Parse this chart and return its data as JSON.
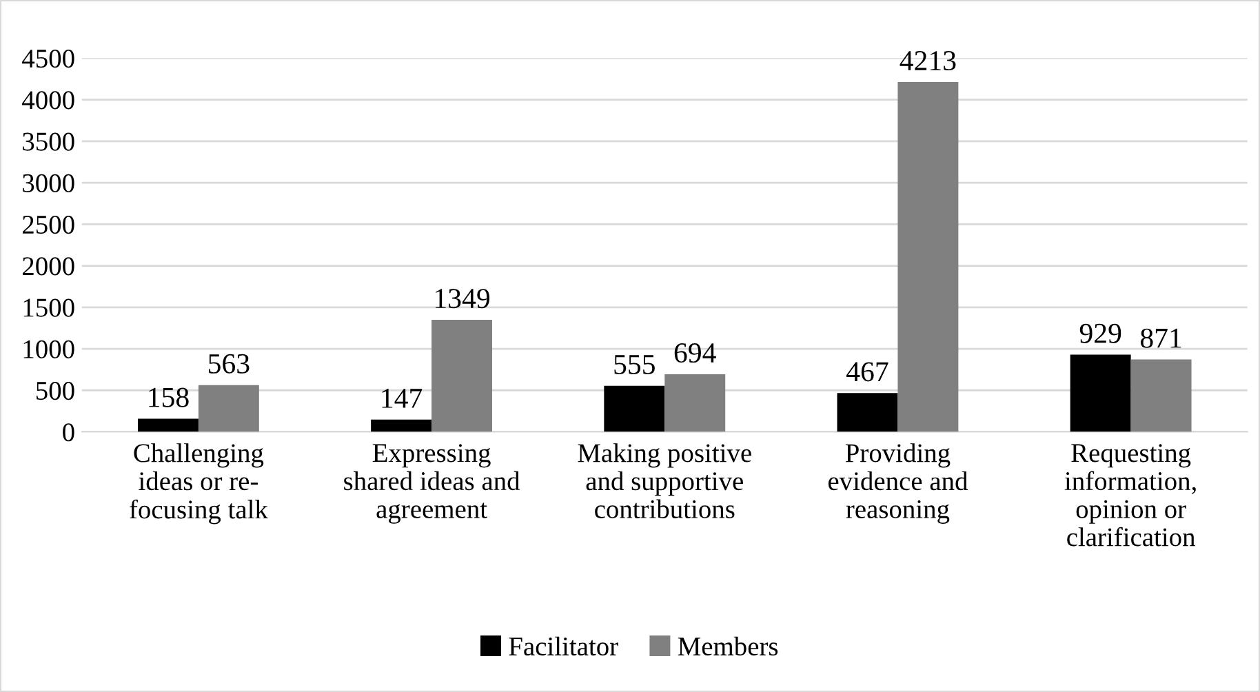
{
  "chart_data": {
    "type": "bar",
    "categories": [
      "Challenging\nideas or re-\nfocusing talk",
      "Expressing\nshared ideas and\nagreement",
      "Making positive\nand supportive\ncontributions",
      "Providing\nevidence and\nreasoning",
      "Requesting\ninformation,\nopinion or\nclarification"
    ],
    "series": [
      {
        "name": "Facilitator",
        "color": "#000000",
        "values": [
          158,
          147,
          555,
          467,
          929
        ]
      },
      {
        "name": "Members",
        "color": "#808080",
        "values": [
          563,
          1349,
          694,
          4213,
          871
        ]
      }
    ],
    "ylim": [
      0,
      4500
    ],
    "yticks": [
      0,
      500,
      1000,
      1500,
      2000,
      2500,
      3000,
      3500,
      4000,
      4500
    ],
    "grid": "y",
    "legend": "bottom",
    "data_labels": true
  }
}
